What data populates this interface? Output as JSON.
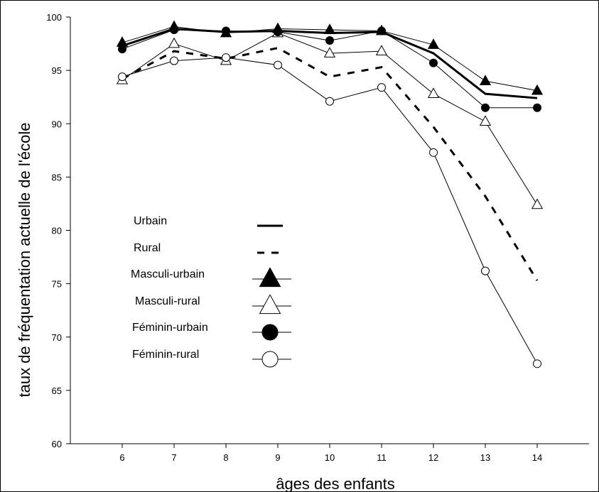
{
  "chart_data": {
    "type": "line",
    "xlabel": "âges des enfants",
    "ylabel": "taux de fréquentation actuelle de l'école",
    "x": [
      6,
      7,
      8,
      9,
      10,
      11,
      12,
      13,
      14
    ],
    "xlim": [
      5,
      15
    ],
    "ylim": [
      60,
      100
    ],
    "yticks": [
      60,
      65,
      70,
      75,
      80,
      85,
      90,
      95,
      100
    ],
    "grid": false,
    "legend_position": "center-left",
    "series": [
      {
        "name": "Urbain",
        "marker": "none",
        "line": "thick-solid",
        "color": "#000000",
        "values": [
          97.3,
          98.9,
          98.6,
          98.7,
          98.5,
          98.6,
          96.6,
          92.8,
          92.4
        ]
      },
      {
        "name": "Rural",
        "marker": "none",
        "line": "thick-dashed",
        "color": "#000000",
        "values": [
          94.2,
          96.8,
          96.1,
          97.1,
          94.4,
          95.3,
          89.7,
          83.2,
          75.3
        ]
      },
      {
        "name": "Masculi-urbain",
        "marker": "filled-triangle",
        "line": "thin-solid",
        "color": "#000000",
        "values": [
          97.6,
          99.1,
          98.5,
          98.9,
          98.8,
          98.7,
          97.4,
          94.0,
          93.1
        ]
      },
      {
        "name": "Masculi-rural",
        "marker": "open-triangle",
        "line": "thin-solid",
        "color": "#000000",
        "values": [
          94.1,
          97.5,
          95.9,
          98.5,
          96.6,
          96.8,
          92.8,
          90.2,
          82.4
        ]
      },
      {
        "name": "Féminin-urbain",
        "marker": "filled-circle",
        "line": "thin-solid",
        "color": "#000000",
        "values": [
          97.0,
          98.8,
          98.7,
          98.6,
          97.8,
          98.7,
          95.7,
          91.5,
          91.5
        ]
      },
      {
        "name": "Féminin-rural",
        "marker": "open-circle",
        "line": "thin-solid",
        "color": "#000000",
        "values": [
          94.4,
          95.9,
          96.2,
          95.5,
          92.1,
          93.4,
          87.3,
          76.2,
          67.5
        ]
      }
    ]
  }
}
